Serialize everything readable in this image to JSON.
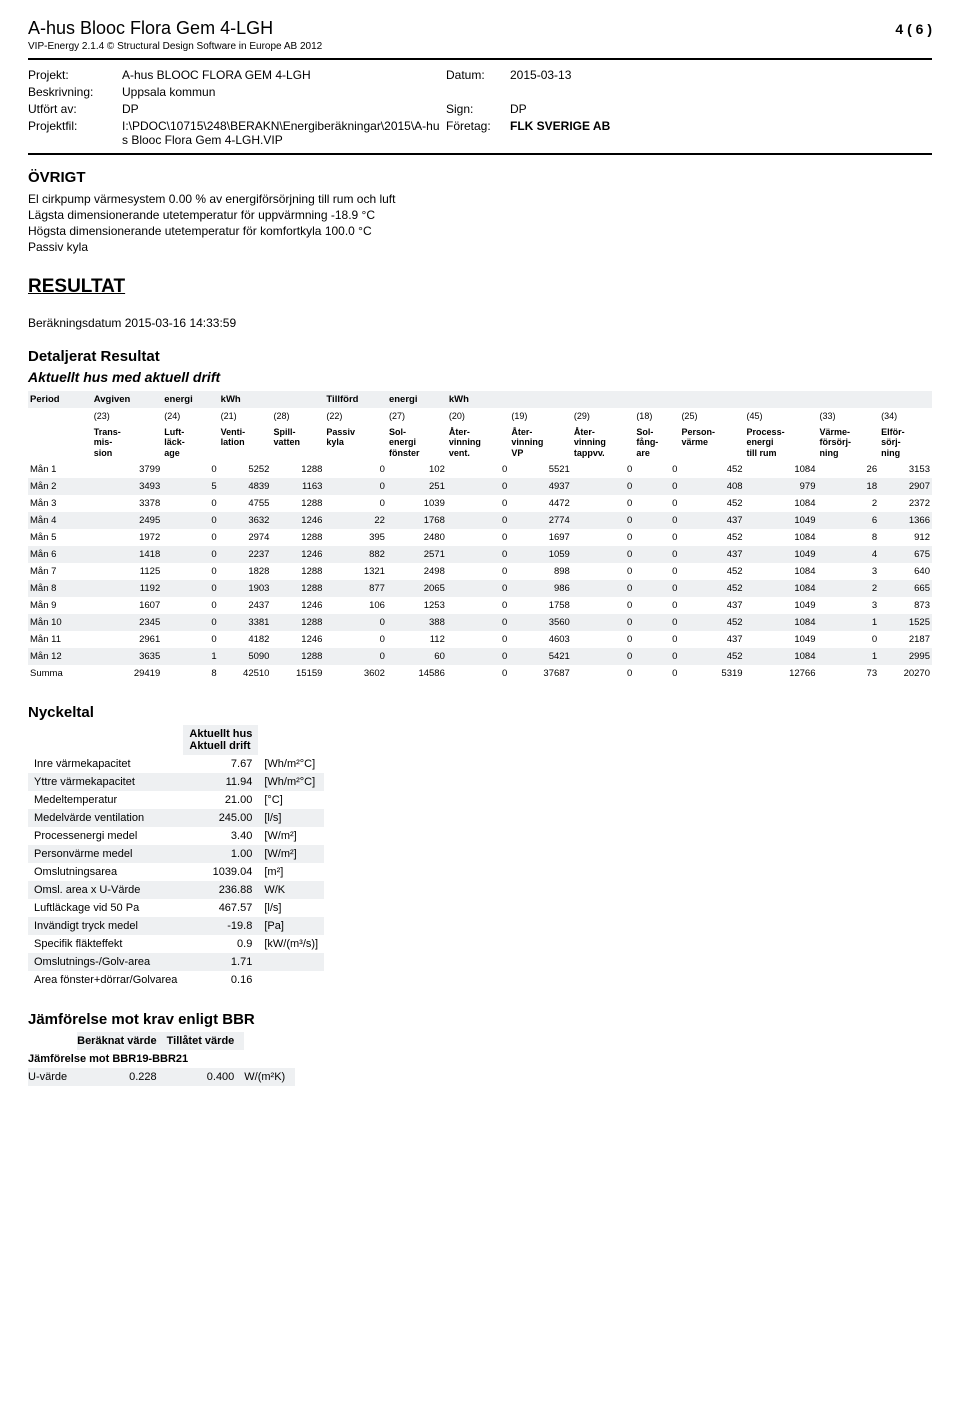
{
  "header": {
    "title": "A-hus Blooc Flora Gem 4-LGH",
    "page_num": "4 ( 6 )",
    "subline": "VIP-Energy 2.1.4  © Structural Design Software in Europe AB 2012"
  },
  "meta": {
    "projekt_label": "Projekt:",
    "projekt_value": "A-hus BLOOC FLORA GEM 4-LGH",
    "datum_label": "Datum:",
    "datum_value": "2015-03-13",
    "beskr_label": "Beskrivning:",
    "beskr_value": "Uppsala kommun",
    "utfort_label": "Utfört av:",
    "utfort_value": "DP",
    "sign_label": "Sign:",
    "sign_value": "DP",
    "projfil_label": "Projektfil:",
    "projfil_value": "I:\\PDOC\\10715\\248\\BERAKN\\Energiberäkningar\\2015\\A-hus Blooc Flora Gem 4-LGH.VIP",
    "foretag_label": "Företag:",
    "foretag_value": "FLK SVERIGE AB"
  },
  "ovrigt": {
    "heading": "ÖVRIGT",
    "line1": "El cirkpump värmesystem 0.00 % av energiförsörjning till rum och luft",
    "line2": "Lägsta dimensionerande utetemperatur för uppvärmning -18.9 °C",
    "line3": "Högsta dimensionerande utetemperatur för komfortkyla 100.0 °C",
    "line4": "Passiv kyla"
  },
  "resultat_heading": "RESULTAT",
  "berakn_datum": "Beräkningsdatum  2015-03-16  14:33:59",
  "detaljerat_heading": "Detaljerat Resultat",
  "aktuellt_heading": "Aktuellt hus med aktuell drift",
  "detail_table": {
    "header1": [
      "Period",
      "Avgiven",
      "energi",
      "kWh",
      "",
      "Tillförd",
      "energi",
      "kWh",
      "",
      "",
      "",
      "",
      "",
      ""
    ],
    "codes": [
      "",
      "(23)",
      "(24)",
      "(21)",
      "(28)",
      "(22)",
      "(27)",
      "(20)",
      "(19)",
      "(29)",
      "(18)",
      "(25)",
      "(45)",
      "(33)",
      "(34)"
    ],
    "labels": [
      "",
      "Trans-\nmis-\nsion",
      "Luft-\nläck-\nage",
      "Venti-\nlation",
      "Spill-\nvatten",
      "Passiv\nkyla",
      "Sol-\nenergi\nfönster",
      "Åter-\nvinning\nvent.",
      "Åter-\nvinning\nVP",
      "Åter-\nvinning\ntappvv.",
      "Sol-\nfång-\nare",
      "Person-\nvärme",
      "Process-\nenergi\ntill rum",
      "Värme-\nförsörj-\nning",
      "Elför-\nsörj-\nning"
    ],
    "rows": [
      [
        "Mån 1",
        "3799",
        "0",
        "5252",
        "1288",
        "0",
        "102",
        "0",
        "5521",
        "0",
        "0",
        "452",
        "1084",
        "26",
        "3153"
      ],
      [
        "Mån 2",
        "3493",
        "5",
        "4839",
        "1163",
        "0",
        "251",
        "0",
        "4937",
        "0",
        "0",
        "408",
        "979",
        "18",
        "2907"
      ],
      [
        "Mån 3",
        "3378",
        "0",
        "4755",
        "1288",
        "0",
        "1039",
        "0",
        "4472",
        "0",
        "0",
        "452",
        "1084",
        "2",
        "2372"
      ],
      [
        "Mån 4",
        "2495",
        "0",
        "3632",
        "1246",
        "22",
        "1768",
        "0",
        "2774",
        "0",
        "0",
        "437",
        "1049",
        "6",
        "1366"
      ],
      [
        "Mån 5",
        "1972",
        "0",
        "2974",
        "1288",
        "395",
        "2480",
        "0",
        "1697",
        "0",
        "0",
        "452",
        "1084",
        "8",
        "912"
      ],
      [
        "Mån 6",
        "1418",
        "0",
        "2237",
        "1246",
        "882",
        "2571",
        "0",
        "1059",
        "0",
        "0",
        "437",
        "1049",
        "4",
        "675"
      ],
      [
        "Mån 7",
        "1125",
        "0",
        "1828",
        "1288",
        "1321",
        "2498",
        "0",
        "898",
        "0",
        "0",
        "452",
        "1084",
        "3",
        "640"
      ],
      [
        "Mån 8",
        "1192",
        "0",
        "1903",
        "1288",
        "877",
        "2065",
        "0",
        "986",
        "0",
        "0",
        "452",
        "1084",
        "2",
        "665"
      ],
      [
        "Mån 9",
        "1607",
        "0",
        "2437",
        "1246",
        "106",
        "1253",
        "0",
        "1758",
        "0",
        "0",
        "437",
        "1049",
        "3",
        "873"
      ],
      [
        "Mån 10",
        "2345",
        "0",
        "3381",
        "1288",
        "0",
        "388",
        "0",
        "3560",
        "0",
        "0",
        "452",
        "1084",
        "1",
        "1525"
      ],
      [
        "Mån 11",
        "2961",
        "0",
        "4182",
        "1246",
        "0",
        "112",
        "0",
        "4603",
        "0",
        "0",
        "437",
        "1049",
        "0",
        "2187"
      ],
      [
        "Mån 12",
        "3635",
        "1",
        "5090",
        "1288",
        "0",
        "60",
        "0",
        "5421",
        "0",
        "0",
        "452",
        "1084",
        "1",
        "2995"
      ],
      [
        "Summa",
        "29419",
        "8",
        "42510",
        "15159",
        "3602",
        "14586",
        "0",
        "37687",
        "0",
        "0",
        "5319",
        "12766",
        "73",
        "20270"
      ]
    ],
    "alt_color": "#eef0f2",
    "bg_color": "#ffffff"
  },
  "nyckeltal": {
    "heading": "Nyckeltal",
    "sub1": "Aktuellt hus",
    "sub2": "Aktuell drift",
    "rows": [
      [
        "Inre värmekapacitet",
        "7.67",
        "[Wh/m²°C]"
      ],
      [
        "Yttre värmekapacitet",
        "11.94",
        "[Wh/m²°C]"
      ],
      [
        "Medeltemperatur",
        "21.00",
        "[°C]"
      ],
      [
        "Medelvärde ventilation",
        "245.00",
        "[l/s]"
      ],
      [
        "Processenergi medel",
        "3.40",
        "[W/m²]"
      ],
      [
        "Personvärme medel",
        "1.00",
        "[W/m²]"
      ],
      [
        "Omslutningsarea",
        "1039.04",
        "[m²]"
      ],
      [
        "Omsl. area x U-Värde",
        "236.88",
        "W/K"
      ],
      [
        "Luftläckage vid 50 Pa",
        "467.57",
        "[l/s]"
      ],
      [
        "Invändigt tryck medel",
        "-19.8",
        "[Pa]"
      ],
      [
        "Specifik fläkteffekt",
        "0.9",
        "[kW/(m³/s)]"
      ],
      [
        "Omslutnings-/Golv-area",
        "1.71",
        ""
      ],
      [
        "Area fönster+dörrar/Golvarea",
        "0.16",
        ""
      ]
    ]
  },
  "bbr": {
    "heading": "Jämförelse mot krav enligt BBR",
    "col1": "Beräknat värde",
    "col2": "Tillåtet värde",
    "subhead": "Jämförelse mot BBR19-BBR21",
    "row_label": "U-värde",
    "v1": "0.228",
    "v2": "0.400",
    "unit": "W/(m²K)"
  }
}
